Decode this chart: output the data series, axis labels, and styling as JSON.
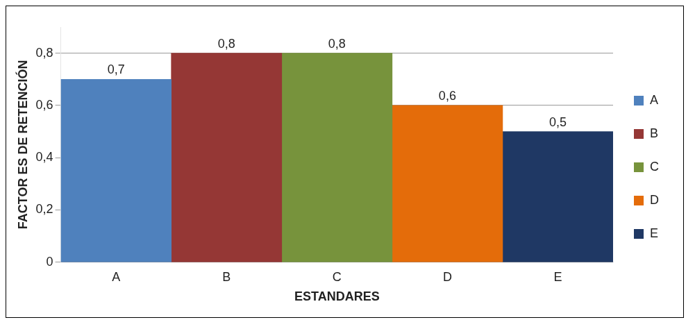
{
  "chart_data": {
    "type": "bar",
    "xlabel": "ESTANDARES",
    "ylabel": "FACTOR ES DE RETENCIÓN",
    "categories": [
      "A",
      "B",
      "C",
      "D",
      "E"
    ],
    "series": [
      {
        "name": "A",
        "color": "#4f81bd",
        "values": [
          0.7,
          null,
          null,
          null,
          null
        ],
        "value_labels": [
          "0,7",
          null,
          null,
          null,
          null
        ]
      },
      {
        "name": "B",
        "color": "#953735",
        "values": [
          null,
          0.8,
          null,
          null,
          null
        ],
        "value_labels": [
          null,
          "0,8",
          null,
          null,
          null
        ]
      },
      {
        "name": "C",
        "color": "#77933c",
        "values": [
          null,
          null,
          0.8,
          null,
          null
        ],
        "value_labels": [
          null,
          null,
          "0,8",
          null,
          null
        ]
      },
      {
        "name": "D",
        "color": "#e46c0a",
        "values": [
          null,
          null,
          null,
          0.6,
          null
        ],
        "value_labels": [
          null,
          null,
          null,
          "0,6",
          null
        ]
      },
      {
        "name": "E",
        "color": "#1f3864",
        "values": [
          null,
          null,
          null,
          null,
          0.5
        ],
        "value_labels": [
          null,
          null,
          null,
          null,
          "0,5"
        ]
      }
    ],
    "ylim": [
      0,
      0.9
    ],
    "yticks": [
      0,
      {
        "value": 0.2,
        "label": "0,2"
      },
      {
        "value": 0.4,
        "label": "0,4"
      },
      {
        "value": 0.6,
        "label": "0,6"
      },
      {
        "value": 0.8,
        "label": "0,8"
      }
    ],
    "grid": "y",
    "legend": "right"
  }
}
